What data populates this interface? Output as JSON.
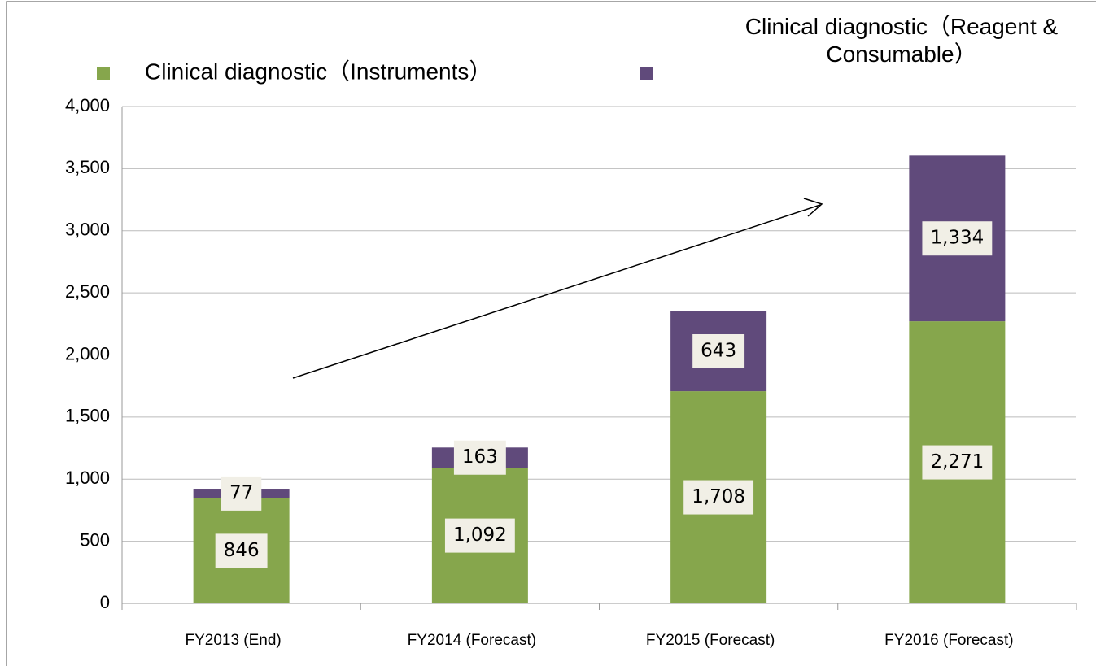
{
  "chart_data": {
    "type": "bar",
    "stacked": true,
    "categories": [
      "FY2013 (End)",
      "FY2014 (Forecast)",
      "FY2015 (Forecast)",
      "FY2016 (Forecast)"
    ],
    "series": [
      {
        "name": "Clinical diagnostic（Instruments）",
        "color": "#86a64c",
        "values": [
          846,
          1092,
          1708,
          2271
        ],
        "value_labels": [
          "846",
          "1,092",
          "1,708",
          "2,271"
        ]
      },
      {
        "name": "Clinical diagnostic（Reagent & Consumable）",
        "color": "#604a7b",
        "values": [
          77,
          163,
          643,
          1334
        ],
        "value_labels": [
          "77",
          "163",
          "643",
          "1,334"
        ]
      }
    ],
    "ylim": [
      0,
      4000
    ],
    "yticks": [
      0,
      500,
      {
        "value": 1000,
        "label": "1,000"
      },
      {
        "value": 1500,
        "label": "1,500"
      },
      {
        "value": 2000,
        "label": "2,000"
      },
      {
        "value": 2500,
        "label": "2,500"
      },
      {
        "value": 3000,
        "label": "3,000"
      },
      {
        "value": 3500,
        "label": "3,500"
      },
      {
        "value": 4000,
        "label": "4,000"
      }
    ],
    "grid": true,
    "legend": "top"
  }
}
